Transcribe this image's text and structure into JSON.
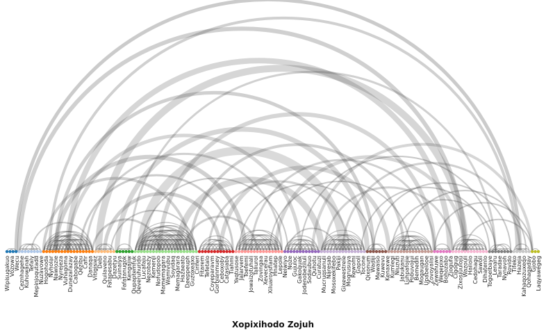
{
  "title": "Xopixihodo Zojuh",
  "palette": {
    "arc": "#444444",
    "groups": [
      "#1f77b4",
      "#aec7e8",
      "#ff7f0e",
      "#ffbb78",
      "#2ca02c",
      "#98df8a",
      "#d62728",
      "#ff9896",
      "#9467bd",
      "#c5b0d5",
      "#8c564b",
      "#c49c94",
      "#e377c2",
      "#f7b6d2",
      "#7f7f7f",
      "#c7c7c7",
      "#bcbd22",
      "#dbdb8d"
    ]
  },
  "labels": [
    "Wipisugakuo",
    "Vozowa",
    "Wecu",
    "Ceznhagehe",
    "Kuhowanah",
    "Tefaly",
    "Mepinjoqutadd",
    "Nuzavowe",
    "Hogohoda",
    "Nyholar",
    "Nawlozie",
    "Nyrejeza",
    "Vuhagoma",
    "Dunezarazay",
    "Cabogabe",
    "Qezibu",
    "Cafir",
    "Danaqa",
    "Vitigisiez",
    "Debi",
    "Quilaveno",
    "Fatapesabu",
    "Dazetyu",
    "Suinaiya",
    "Fafatanugok",
    "Kengajiw",
    "Qupaptemfuk",
    "Qeveruhurido",
    "Lucafaju",
    "Nezobazy",
    "Kemenji",
    "Nofudopoo",
    "Mamemagara",
    "Wamivubu",
    "Soyidaq",
    "Memagarara",
    "Hazaeato",
    "Deeppeuph",
    "Guzoxeaxo",
    "Ciriferi",
    "Fitarem",
    "Tefetalo",
    "Coyeparavm",
    "Gorbianmuey",
    "Ceboxoby",
    "Catasiaba",
    "Tiahmi",
    "Yaqtusose",
    "Jalarvem",
    "Toefemi",
    "Jowaizotuhali",
    "Taliurol",
    "Zovingaa",
    "Xevecerau",
    "Xiluaroysfiam",
    "Hnatep",
    "Lepole",
    "Neiwiyo",
    "Noze",
    "Gujuloc",
    "Gakoquak",
    "Jodenobeziluli",
    "Sodaubuo",
    "Quhotu",
    "Curatuzi",
    "Mucruqsanuli",
    "Naresab",
    "Mosoxekifebo",
    "Pakiji",
    "Gixewestrele",
    "Moqrusuya",
    "Rewomi",
    "Gapoll",
    "Tocone",
    "Qixonum",
    "Wadiji",
    "Mewaiso",
    "Kuwevu",
    "Kenaxwe",
    "Kumlegi",
    "Niuzuti",
    "Jabukanu",
    "Luhpafojie",
    "Pobuvojui",
    "Bemedih",
    "Mogaugan",
    "Upabelooe",
    "Zovoyalisi",
    "Zewahuwe",
    "Weqepixo",
    "Bohozabo",
    "Zjogufa",
    "Cigogug",
    "Zixosjuuloju",
    "Wazouli",
    "Hailolo",
    "Cedohagu",
    "Sawoli",
    "Dihatenlo",
    "Togoelbaye",
    "Lenaru",
    "Taradae",
    "Nynavoh",
    "Rovido",
    "Tifeko",
    "Hazeja",
    "Kahaqozuxeqo",
    "Qohagaday",
    "Gjobo",
    "Laqyawegeg"
  ]
}
